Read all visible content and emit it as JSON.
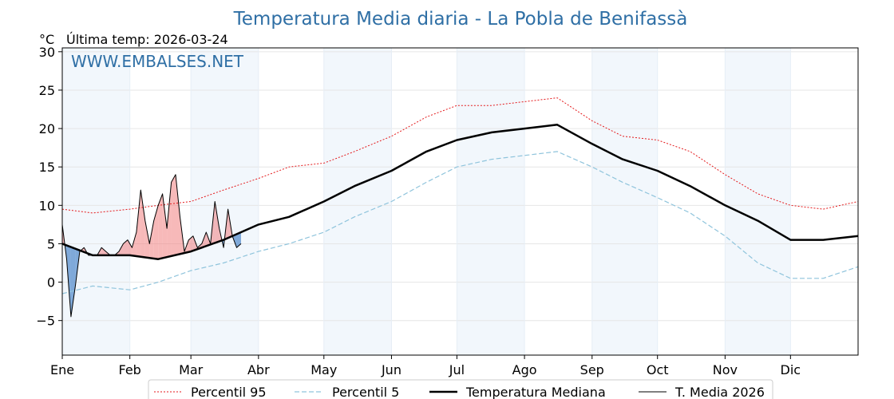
{
  "chart_data": {
    "type": "line",
    "title": "Temperatura Media diaria - La Pobla de Benifassà",
    "unit_label": "°C",
    "last_temp_label": "Última temp: 2026-03-24",
    "watermark": "WWW.EMBALSES.NET",
    "x_domain": [
      1,
      366
    ],
    "ylim": [
      -9.5,
      30.5
    ],
    "y_ticks": [
      -5,
      0,
      5,
      10,
      15,
      20,
      25,
      30
    ],
    "y_tick_labels": [
      "−5",
      "0",
      "5",
      "10",
      "15",
      "20",
      "25",
      "30"
    ],
    "month_starts": [
      1,
      32,
      60,
      91,
      121,
      152,
      182,
      213,
      244,
      274,
      305,
      335
    ],
    "months": [
      "Ene",
      "Feb",
      "Mar",
      "Abr",
      "May",
      "Jun",
      "Jul",
      "Ago",
      "Sep",
      "Oct",
      "Nov",
      "Dic"
    ],
    "grid": true,
    "legend_position": "bottom",
    "colors": {
      "p95": "#e41a1c",
      "p5": "#8fc4dc",
      "median": "#000000",
      "current": "#000000",
      "above_fill": "#f08080",
      "below_fill": "#6b9bd2",
      "band": "#f2f7fc"
    },
    "series": [
      {
        "key": "p95",
        "name": "Percentil 95",
        "x": [
          1,
          15,
          32,
          45,
          60,
          75,
          91,
          105,
          121,
          135,
          152,
          168,
          182,
          198,
          213,
          228,
          244,
          258,
          274,
          289,
          305,
          320,
          335,
          350,
          366
        ],
        "y": [
          9.5,
          9,
          9.5,
          10,
          10.5,
          12,
          13.5,
          15,
          15.5,
          17,
          19,
          21.5,
          23,
          23,
          23.5,
          24,
          21,
          19,
          18.5,
          17,
          14,
          11.5,
          10,
          9.5,
          10.5
        ]
      },
      {
        "key": "p5",
        "name": "Percentil 5",
        "x": [
          1,
          15,
          32,
          45,
          60,
          75,
          91,
          105,
          121,
          135,
          152,
          168,
          182,
          198,
          213,
          228,
          244,
          258,
          274,
          289,
          305,
          320,
          335,
          350,
          366
        ],
        "y": [
          -1.5,
          -0.5,
          -1,
          0,
          1.5,
          2.5,
          4,
          5,
          6.5,
          8.5,
          10.5,
          13,
          15,
          16,
          16.5,
          17,
          15,
          13,
          11,
          9,
          6,
          2.5,
          0.5,
          0.5,
          2
        ]
      },
      {
        "key": "median",
        "name": "Temperatura Mediana",
        "x": [
          1,
          15,
          32,
          45,
          60,
          75,
          91,
          105,
          121,
          135,
          152,
          168,
          182,
          198,
          213,
          228,
          244,
          258,
          274,
          289,
          305,
          320,
          335,
          350,
          366
        ],
        "y": [
          5,
          3.5,
          3.5,
          3,
          4,
          5.5,
          7.5,
          8.5,
          10.5,
          12.5,
          14.5,
          17,
          18.5,
          19.5,
          20,
          20.5,
          18,
          16,
          14.5,
          12.5,
          10,
          8,
          5.5,
          5.5,
          6
        ]
      },
      {
        "key": "current",
        "name": "T. Media 2026",
        "x": [
          1,
          3,
          5,
          7,
          9,
          11,
          13,
          15,
          17,
          19,
          21,
          23,
          25,
          27,
          29,
          31,
          33,
          35,
          37,
          39,
          41,
          43,
          45,
          47,
          49,
          51,
          53,
          55,
          57,
          59,
          61,
          63,
          65,
          67,
          69,
          71,
          73,
          75,
          77,
          79,
          81,
          83
        ],
        "y": [
          7.5,
          3,
          -4.5,
          -0.5,
          4,
          4.5,
          3.5,
          3.5,
          3.5,
          4.5,
          4,
          3.5,
          3.5,
          4,
          5,
          5.5,
          4.5,
          6.5,
          12,
          8,
          5,
          8,
          10,
          11.5,
          7,
          13,
          14,
          8.5,
          4,
          5.5,
          6,
          4.5,
          5,
          6.5,
          5,
          10.5,
          7,
          4.5,
          9.5,
          6,
          4.5,
          5
        ]
      }
    ]
  }
}
